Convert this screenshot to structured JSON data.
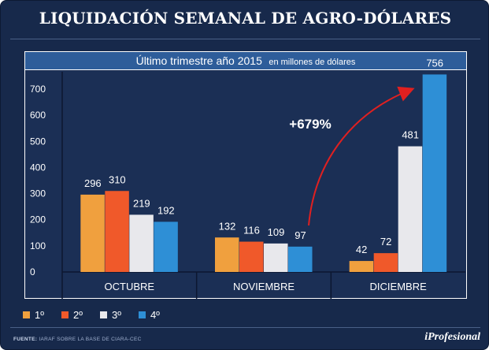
{
  "header": {
    "title": "LIQUIDACIÓN SEMANAL DE AGRO-DÓLARES"
  },
  "chart_data": {
    "type": "bar",
    "title": "Último trimestre año 2015",
    "subtitle": "en millones de dólares",
    "categories": [
      "OCTUBRE",
      "NOVIEMBRE",
      "DICIEMBRE"
    ],
    "series": [
      {
        "name": "1º",
        "color": "#f0a03e",
        "values": [
          296,
          132,
          42
        ]
      },
      {
        "name": "2º",
        "color": "#f0592a",
        "values": [
          310,
          116,
          72
        ]
      },
      {
        "name": "3º",
        "color": "#e8e8ec",
        "values": [
          219,
          109,
          481
        ]
      },
      {
        "name": "4º",
        "color": "#2e8fd6",
        "values": [
          192,
          97,
          756
        ]
      }
    ],
    "yticks": [
      0,
      100,
      200,
      300,
      400,
      500,
      600,
      700
    ],
    "ylim": [
      0,
      800
    ],
    "grid": false,
    "legend_position": "bottom-left",
    "annotation": {
      "text": "+679%",
      "color": "#e02020"
    }
  },
  "footer": {
    "source_label": "FUENTE:",
    "source_text": "IARAF SOBRE LA BASE DE CIARA-CEC",
    "brand": "iProfesional"
  }
}
